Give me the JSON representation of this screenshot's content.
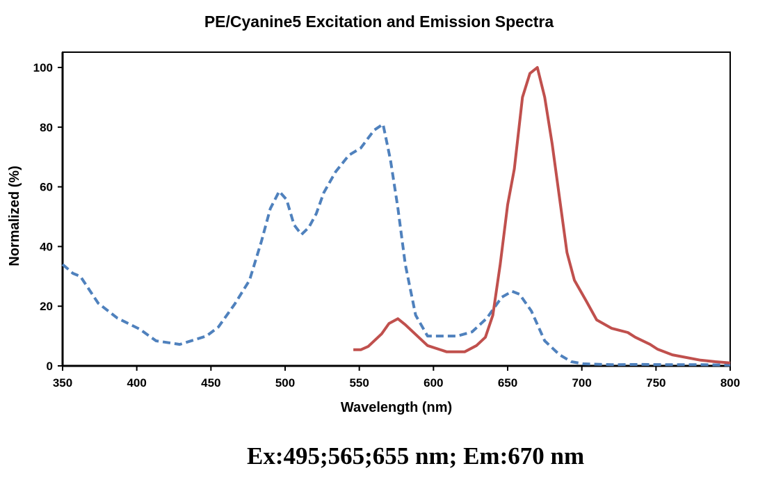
{
  "chart_data": {
    "type": "line",
    "title": "PE/Cyanine5 Excitation and Emission Spectra",
    "subtitle": "Ex:495;565;655 nm; Em:670 nm",
    "xlabel": "Wavelength (nm)",
    "ylabel": "Normalized (%)",
    "xlim": [
      350,
      800
    ],
    "ylim": [
      0,
      100
    ],
    "xticks": [
      "350",
      "400",
      "450",
      "500",
      "550",
      "600",
      "650",
      "700",
      "750",
      "800"
    ],
    "yticks": [
      "0",
      "20",
      "40",
      "60",
      "80",
      "100"
    ],
    "grid": false,
    "legend": "none",
    "series": [
      {
        "style": "dashed",
        "color": "#4F81BD",
        "points": [
          [
            350,
            34
          ],
          [
            357,
            31
          ],
          [
            362,
            30
          ],
          [
            374,
            21
          ],
          [
            387,
            16
          ],
          [
            402,
            12.3
          ],
          [
            413,
            8.4
          ],
          [
            429,
            7.2
          ],
          [
            447,
            10
          ],
          [
            455,
            13
          ],
          [
            466,
            20.7
          ],
          [
            476,
            28.7
          ],
          [
            484,
            41.7
          ],
          [
            490,
            52.7
          ],
          [
            496,
            58.5
          ],
          [
            501,
            55.7
          ],
          [
            506,
            47.3
          ],
          [
            511,
            44
          ],
          [
            516,
            46.4
          ],
          [
            521,
            51
          ],
          [
            526,
            58
          ],
          [
            534,
            65
          ],
          [
            543,
            70.6
          ],
          [
            551,
            73
          ],
          [
            560,
            79
          ],
          [
            566,
            81
          ],
          [
            571,
            69
          ],
          [
            576,
            53
          ],
          [
            581,
            34
          ],
          [
            588,
            17
          ],
          [
            596,
            10
          ],
          [
            616,
            10
          ],
          [
            626,
            11.4
          ],
          [
            636,
            16
          ],
          [
            646,
            23
          ],
          [
            653,
            25
          ],
          [
            658,
            24
          ],
          [
            666,
            18.4
          ],
          [
            675,
            8.4
          ],
          [
            685,
            3.7
          ],
          [
            693,
            1.4
          ],
          [
            701,
            0.7
          ],
          [
            720,
            0.4
          ],
          [
            740,
            0.5
          ],
          [
            760,
            0.4
          ],
          [
            780,
            0.4
          ],
          [
            800,
            0.3
          ]
        ]
      },
      {
        "style": "solid",
        "color": "#C0504D",
        "points": [
          [
            546,
            5.4
          ],
          [
            551,
            5.4
          ],
          [
            556,
            6.5
          ],
          [
            565,
            10.7
          ],
          [
            570,
            14.2
          ],
          [
            576,
            15.8
          ],
          [
            581,
            13.8
          ],
          [
            596,
            6.8
          ],
          [
            609,
            4.7
          ],
          [
            621,
            4.7
          ],
          [
            629,
            6.8
          ],
          [
            635,
            9.6
          ],
          [
            640,
            17
          ],
          [
            645,
            34
          ],
          [
            650,
            54
          ],
          [
            654.5,
            66
          ],
          [
            660,
            90
          ],
          [
            665,
            98
          ],
          [
            670,
            100
          ],
          [
            675,
            90
          ],
          [
            680,
            74.4
          ],
          [
            690,
            38
          ],
          [
            695,
            28.7
          ],
          [
            703,
            21.7
          ],
          [
            710,
            15.4
          ],
          [
            720,
            12.6
          ],
          [
            731,
            11.2
          ],
          [
            736,
            9.6
          ],
          [
            746,
            7.2
          ],
          [
            751,
            5.6
          ],
          [
            761,
            3.7
          ],
          [
            780,
            1.9
          ],
          [
            790,
            1.4
          ],
          [
            800,
            1
          ]
        ]
      }
    ]
  }
}
